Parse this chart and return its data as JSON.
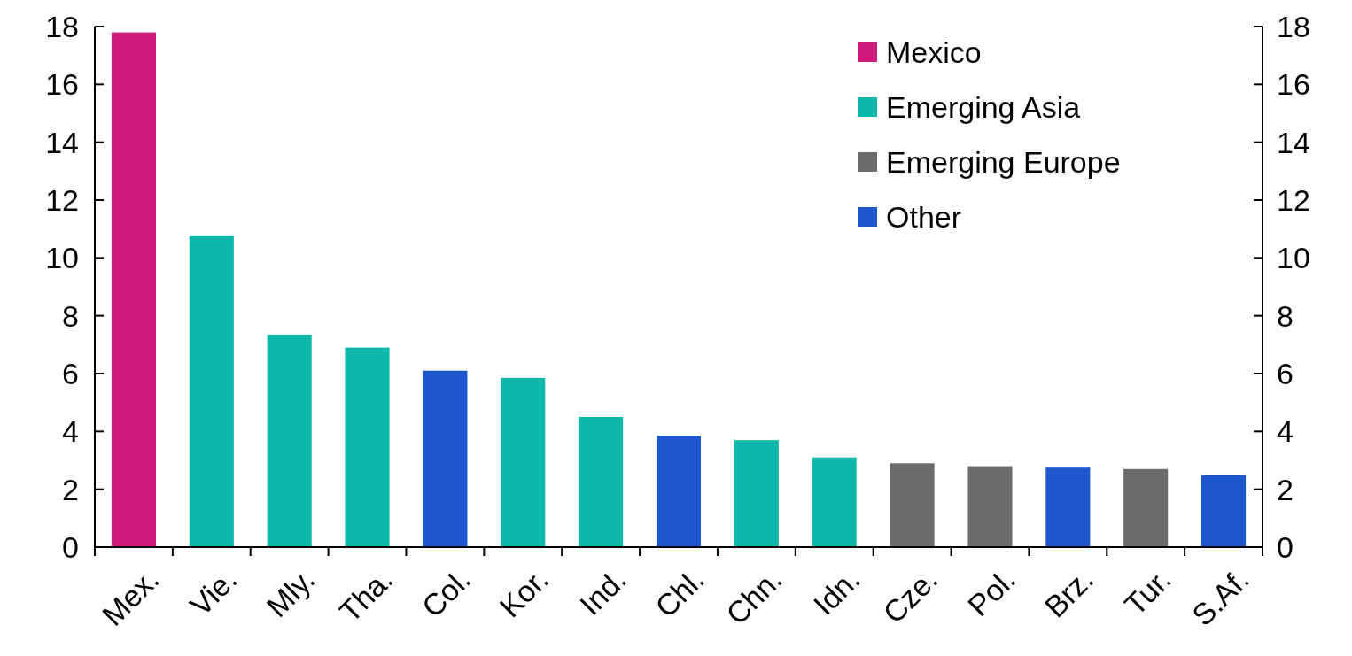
{
  "chart_data": {
    "type": "bar",
    "categories": [
      "Mex.",
      "Vie.",
      "Mly.",
      "Tha.",
      "Col.",
      "Kor.",
      "Ind.",
      "Chl.",
      "Chn.",
      "Idn.",
      "Cze.",
      "Pol.",
      "Brz.",
      "Tur.",
      "S.Af."
    ],
    "series": [
      {
        "name": "Mexico",
        "color": "#d01c7b",
        "values": [
          17.8,
          null,
          null,
          null,
          null,
          null,
          null,
          null,
          null,
          null,
          null,
          null,
          null,
          null,
          null
        ]
      },
      {
        "name": "Emerging Asia",
        "color": "#0db8aa",
        "values": [
          null,
          10.75,
          7.35,
          6.9,
          null,
          5.85,
          4.5,
          null,
          3.7,
          3.1,
          null,
          null,
          null,
          null,
          null
        ]
      },
      {
        "name": "Emerging Europe",
        "color": "#6b6b6b",
        "values": [
          null,
          null,
          null,
          null,
          null,
          null,
          null,
          null,
          null,
          null,
          2.9,
          2.8,
          null,
          2.7,
          null
        ]
      },
      {
        "name": "Other",
        "color": "#1f57cf",
        "values": [
          null,
          null,
          null,
          null,
          6.1,
          null,
          null,
          3.85,
          null,
          null,
          null,
          null,
          2.75,
          null,
          2.5
        ]
      }
    ],
    "ylim": [
      0,
      18
    ],
    "yticks": [
      0,
      2,
      4,
      6,
      8,
      10,
      12,
      14,
      16,
      18
    ],
    "y2lim": [
      0,
      18
    ],
    "y2ticks": [
      0,
      2,
      4,
      6,
      8,
      10,
      12,
      14,
      16,
      18
    ],
    "legend": "top right",
    "grid": false
  }
}
